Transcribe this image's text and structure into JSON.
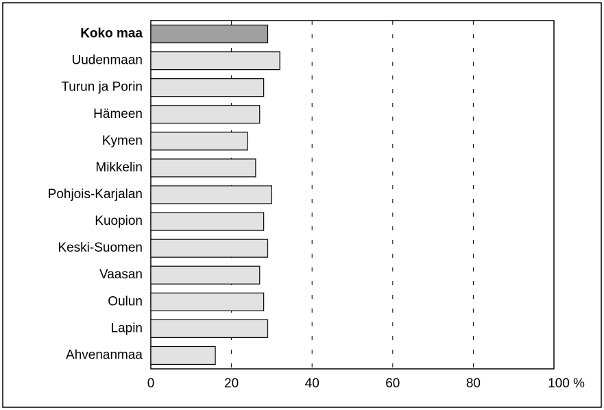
{
  "chart_data": {
    "type": "bar",
    "categories": [
      "Koko maa",
      "Uudenmaan",
      "Turun ja Porin",
      "Hämeen",
      "Kymen",
      "Mikkelin",
      "Pohjois-Karjalan",
      "Kuopion",
      "Keski-Suomen",
      "Vaasan",
      "Oulun",
      "Lapin",
      "Ahvenanmaa"
    ],
    "values": [
      29,
      32,
      28,
      27,
      24,
      26,
      30,
      28,
      29,
      27,
      28,
      29,
      16
    ],
    "colors": [
      "#a0a0a0",
      "#e2e2e2",
      "#e2e2e2",
      "#e2e2e2",
      "#e2e2e2",
      "#e2e2e2",
      "#e2e2e2",
      "#e2e2e2",
      "#e2e2e2",
      "#e2e2e2",
      "#e2e2e2",
      "#e2e2e2",
      "#e2e2e2"
    ],
    "xlim": [
      0,
      100
    ],
    "xticks": [
      0,
      20,
      40,
      60,
      80,
      {
        "value": 100,
        "label": "100 %"
      }
    ],
    "grid": true
  }
}
